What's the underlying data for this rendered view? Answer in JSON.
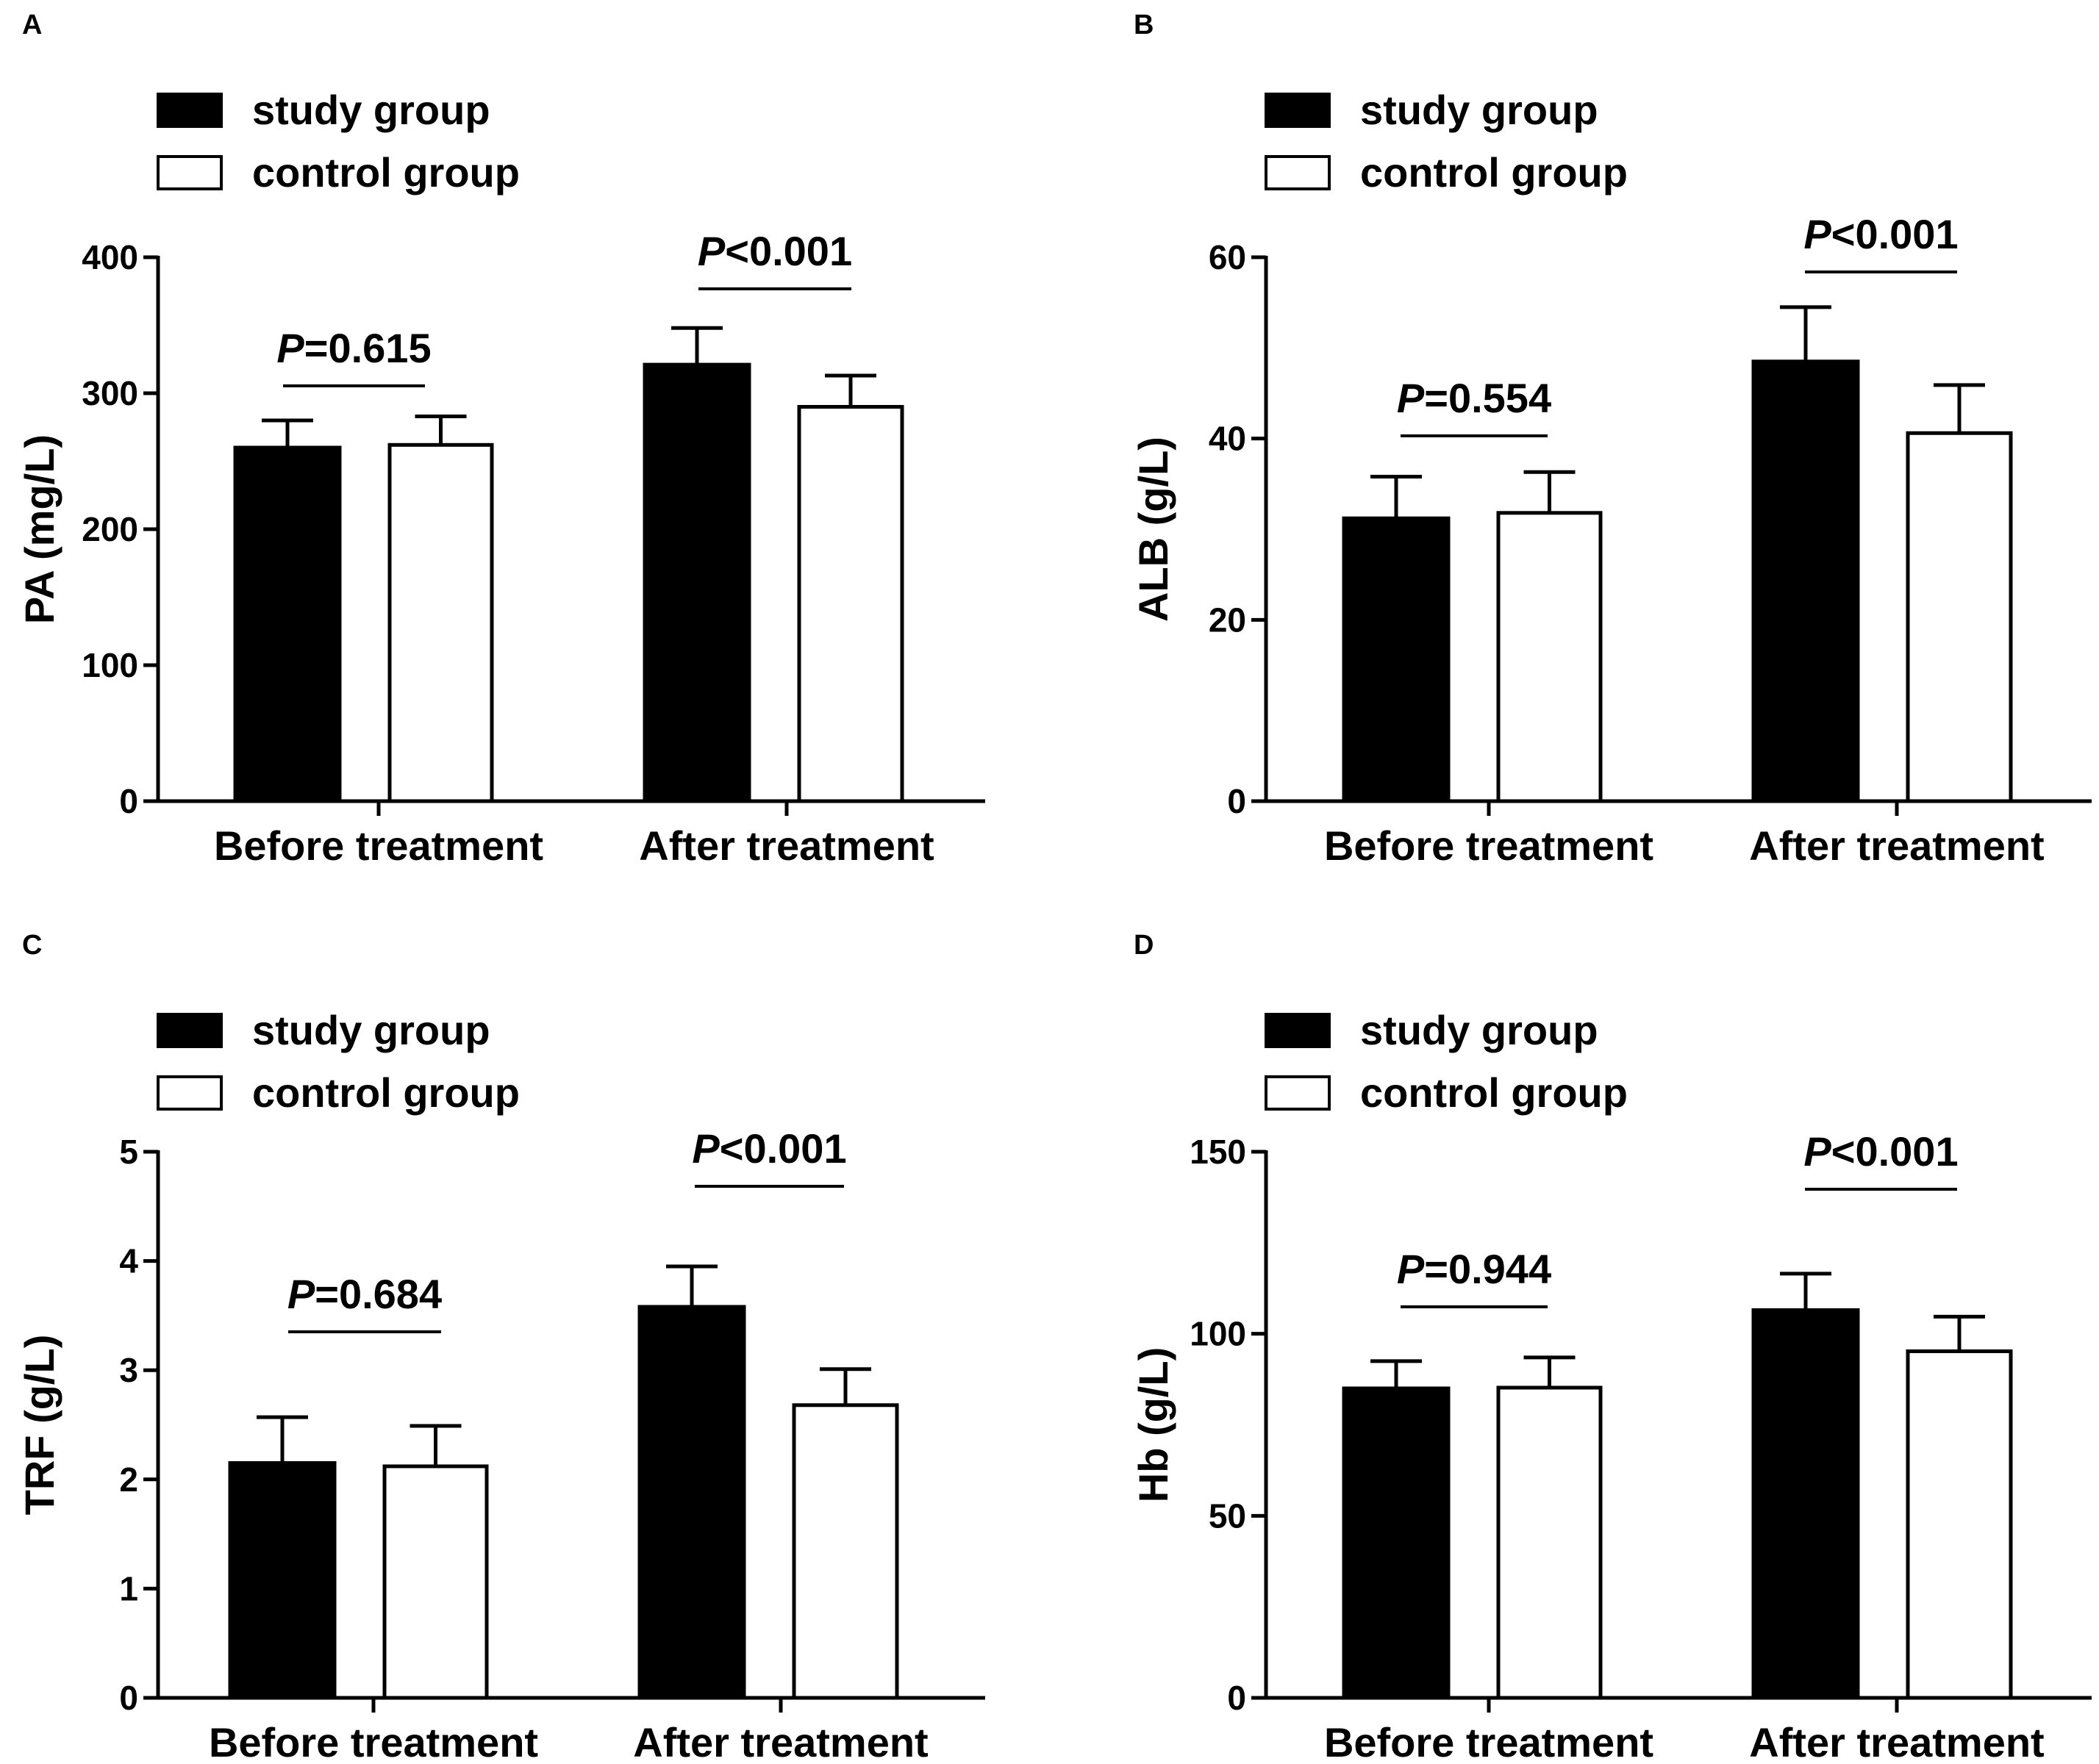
{
  "figure": {
    "legend": {
      "study": "study group",
      "control": "control group"
    },
    "colors": {
      "study": "#000000",
      "control": "#ffffff",
      "stroke": "#000000"
    }
  },
  "chart_data": [
    {
      "panel": "A",
      "type": "bar",
      "ylabel": "PA (mg/L)",
      "ylim": [
        0,
        400
      ],
      "yticks": [
        0,
        100,
        200,
        300,
        400
      ],
      "categories": [
        "Before treatment",
        "After treatment"
      ],
      "series": [
        {
          "name": "study group",
          "values": [
            260,
            321
          ],
          "errors": [
            20,
            27
          ]
        },
        {
          "name": "control group",
          "values": [
            262,
            290
          ],
          "errors": [
            21,
            23
          ]
        }
      ],
      "annotations": [
        {
          "p_italic": "P",
          "p_text": "=0.615"
        },
        {
          "p_italic": "P",
          "p_text": "<0.001"
        }
      ],
      "legend_position": "top-left"
    },
    {
      "panel": "B",
      "type": "bar",
      "ylabel": "ALB (g/L)",
      "ylim": [
        0,
        60
      ],
      "yticks": [
        0,
        20,
        40,
        60
      ],
      "categories": [
        "Before treatment",
        "After treatment"
      ],
      "series": [
        {
          "name": "study group",
          "values": [
            31.2,
            48.5
          ],
          "errors": [
            4.6,
            6.0
          ]
        },
        {
          "name": "control group",
          "values": [
            31.8,
            40.6
          ],
          "errors": [
            4.5,
            5.3
          ]
        }
      ],
      "annotations": [
        {
          "p_italic": "P",
          "p_text": "=0.554"
        },
        {
          "p_italic": "P",
          "p_text": "<0.001"
        }
      ],
      "legend_position": "top-left"
    },
    {
      "panel": "C",
      "type": "bar",
      "ylabel": "TRF (g/L)",
      "ylim": [
        0,
        5
      ],
      "yticks": [
        0,
        1,
        2,
        3,
        4,
        5
      ],
      "categories": [
        "Before treatment",
        "After treatment"
      ],
      "series": [
        {
          "name": "study group",
          "values": [
            2.15,
            3.58
          ],
          "errors": [
            0.42,
            0.37
          ]
        },
        {
          "name": "control group",
          "values": [
            2.12,
            2.68
          ],
          "errors": [
            0.37,
            0.33
          ]
        }
      ],
      "annotations": [
        {
          "p_italic": "P",
          "p_text": "=0.684"
        },
        {
          "p_italic": "P",
          "p_text": "<0.001"
        }
      ],
      "legend_position": "top-left"
    },
    {
      "panel": "D",
      "type": "bar",
      "ylabel": "Hb (g/L)",
      "ylim": [
        0,
        150
      ],
      "yticks": [
        0,
        50,
        100,
        150
      ],
      "categories": [
        "Before treatment",
        "After treatment"
      ],
      "series": [
        {
          "name": "study group",
          "values": [
            85,
            106.5
          ],
          "errors": [
            7.5,
            10
          ]
        },
        {
          "name": "control group",
          "values": [
            85.2,
            95.2
          ],
          "errors": [
            8.3,
            9.5
          ]
        }
      ],
      "annotations": [
        {
          "p_italic": "P",
          "p_text": "=0.944"
        },
        {
          "p_italic": "P",
          "p_text": "<0.001"
        }
      ],
      "legend_position": "top-left"
    }
  ]
}
